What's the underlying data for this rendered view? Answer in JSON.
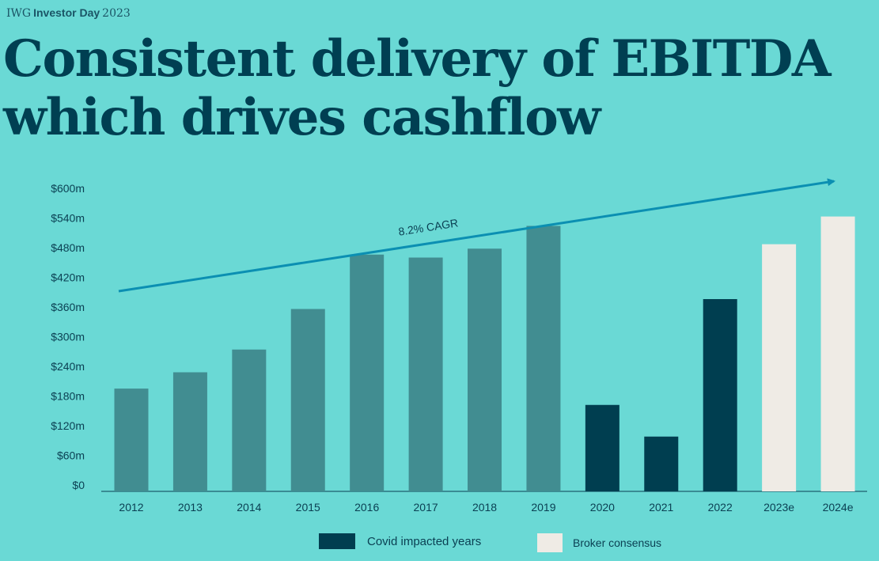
{
  "header": {
    "brand_prefix": "IWG",
    "brand_bold": "Investor Day",
    "brand_year": "2023",
    "title_line1": "Consistent delivery of EBITDA",
    "title_line2": "which drives cashflow"
  },
  "colors": {
    "background": "#6ad9d5",
    "normal_bar": "#418d91",
    "covid_bar": "#003e50",
    "consensus_bar": "#efebe5",
    "trend_arrow": "#0b8fb2",
    "text": "#0a3f52"
  },
  "legend": {
    "covid": "Covid impacted years",
    "broker": "Broker consensus"
  },
  "chart_data": {
    "type": "bar",
    "categories": [
      "2012",
      "2013",
      "2014",
      "2015",
      "2016",
      "2017",
      "2018",
      "2019",
      "2020",
      "2021",
      "2022",
      "2023e",
      "2024e"
    ],
    "values": [
      195,
      228,
      274,
      356,
      466,
      460,
      478,
      524,
      162,
      98,
      376,
      487,
      543
    ],
    "bar_kinds": [
      "normal",
      "normal",
      "normal",
      "normal",
      "normal",
      "normal",
      "normal",
      "normal",
      "covid",
      "covid",
      "covid",
      "consensus",
      "consensus"
    ],
    "ylim": [
      0,
      600
    ],
    "yticks": [
      0,
      60,
      120,
      180,
      240,
      300,
      360,
      420,
      480,
      540,
      600
    ],
    "ytick_labels": [
      "$0",
      "$60m",
      "$120m",
      "$180m",
      "$240m",
      "$300m",
      "$360m",
      "$420m",
      "$480m",
      "$540m",
      "$600m"
    ],
    "grid": false,
    "annotation": {
      "text": "8.2% CAGR",
      "type": "trend-arrow"
    }
  }
}
